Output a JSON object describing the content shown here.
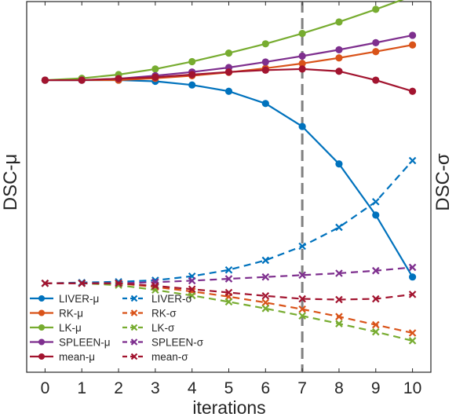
{
  "chart_data": {
    "type": "line",
    "xlabel": "iterations",
    "ylabel_left": "DSC-μ",
    "ylabel_right": "DSC-σ",
    "x": [
      0,
      1,
      2,
      3,
      4,
      5,
      6,
      7,
      8,
      9,
      10
    ],
    "xlim": [
      -0.5,
      10.5
    ],
    "ylim": [
      0,
      1
    ],
    "y_tick_labels_shown": false,
    "grid": false,
    "legend_position": "bottom-left",
    "annotations": [
      {
        "type": "vline",
        "x": 7,
        "style": "dashed",
        "color": "#808080"
      }
    ],
    "series": [
      {
        "name": "LIVER-μ",
        "color": "#0072BD",
        "dash": "solid",
        "marker": "dot",
        "values": [
          0.788,
          0.788,
          0.788,
          0.785,
          0.775,
          0.758,
          0.725,
          0.663,
          0.562,
          0.424,
          0.257
        ]
      },
      {
        "name": "RK-μ",
        "color": "#D95319",
        "dash": "solid",
        "marker": "dot",
        "values": [
          0.788,
          0.788,
          0.788,
          0.793,
          0.8,
          0.809,
          0.82,
          0.833,
          0.848,
          0.865,
          0.883
        ]
      },
      {
        "name": "LK-μ",
        "color": "#77AC30",
        "dash": "solid",
        "marker": "dot",
        "values": [
          0.788,
          0.793,
          0.803,
          0.818,
          0.838,
          0.861,
          0.886,
          0.914,
          0.945,
          0.979,
          1.015
        ]
      },
      {
        "name": "SPLEEN-μ",
        "color": "#7E2F8E",
        "dash": "solid",
        "marker": "dot",
        "values": [
          0.788,
          0.788,
          0.792,
          0.8,
          0.81,
          0.822,
          0.837,
          0.853,
          0.87,
          0.889,
          0.909
        ]
      },
      {
        "name": "mean-μ",
        "color": "#A2142F",
        "dash": "solid",
        "marker": "dot",
        "values": [
          0.788,
          0.788,
          0.792,
          0.796,
          0.803,
          0.81,
          0.815,
          0.818,
          0.812,
          0.788,
          0.758
        ]
      },
      {
        "name": "LIVER-σ",
        "color": "#0072BD",
        "dash": "dashed",
        "marker": "x",
        "values": [
          0.24,
          0.242,
          0.244,
          0.248,
          0.259,
          0.276,
          0.302,
          0.34,
          0.391,
          0.46,
          0.571
        ]
      },
      {
        "name": "RK-σ",
        "color": "#D95319",
        "dash": "dashed",
        "marker": "x",
        "values": [
          0.24,
          0.24,
          0.24,
          0.23,
          0.218,
          0.204,
          0.188,
          0.17,
          0.15,
          0.128,
          0.106
        ]
      },
      {
        "name": "LK-σ",
        "color": "#77AC30",
        "dash": "dashed",
        "marker": "x",
        "values": [
          0.24,
          0.24,
          0.235,
          0.222,
          0.207,
          0.19,
          0.172,
          0.152,
          0.131,
          0.109,
          0.085
        ]
      },
      {
        "name": "SPLEEN-σ",
        "color": "#7E2F8E",
        "dash": "dashed",
        "marker": "x",
        "values": [
          0.24,
          0.24,
          0.24,
          0.243,
          0.247,
          0.252,
          0.257,
          0.262,
          0.267,
          0.274,
          0.283
        ]
      },
      {
        "name": "mean-σ",
        "color": "#A2142F",
        "dash": "dashed",
        "marker": "x",
        "values": [
          0.24,
          0.24,
          0.24,
          0.233,
          0.224,
          0.215,
          0.206,
          0.198,
          0.196,
          0.198,
          0.21
        ]
      }
    ]
  }
}
